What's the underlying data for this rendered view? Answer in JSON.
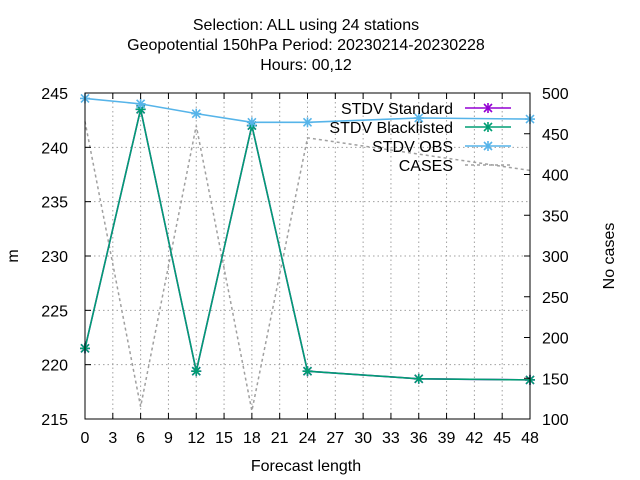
{
  "chart_data": {
    "type": "line",
    "title_lines": [
      "Selection: ALL using    24 stations",
      "Geopotential 150hPa   Period: 20230214-20230228",
      "Hours:  00,12"
    ],
    "xlabel": "Forecast length",
    "ylabel": "m",
    "y2label": "No cases",
    "xlim": [
      0,
      48
    ],
    "ylim": [
      215,
      245
    ],
    "y2lim": [
      100,
      500
    ],
    "xticks": [
      0,
      3,
      6,
      9,
      12,
      15,
      18,
      21,
      24,
      27,
      30,
      33,
      36,
      39,
      42,
      45,
      48
    ],
    "yticks": [
      215,
      220,
      225,
      230,
      235,
      240,
      245
    ],
    "y2ticks": [
      100,
      150,
      200,
      250,
      300,
      350,
      400,
      450,
      500
    ],
    "grid": true,
    "legend_position": "top-right",
    "series": [
      {
        "name": "STDV Standard",
        "axis": "y1",
        "color": "#9400d3",
        "marker": "x",
        "x": [
          0,
          6,
          12,
          18,
          24,
          36,
          48
        ],
        "y": [
          221.5,
          243.5,
          219.4,
          242.0,
          219.4,
          218.7,
          218.6
        ]
      },
      {
        "name": "STDV Blacklisted",
        "axis": "y1",
        "color": "#009e73",
        "marker": "x",
        "x": [
          0,
          6,
          12,
          18,
          24,
          36,
          48
        ],
        "y": [
          221.5,
          243.5,
          219.4,
          242.0,
          219.4,
          218.7,
          218.6
        ]
      },
      {
        "name": "STDV OBS",
        "axis": "y1",
        "color": "#56b4e9",
        "marker": "x",
        "x": [
          0,
          6,
          12,
          18,
          24,
          36,
          48
        ],
        "y": [
          244.5,
          244.0,
          243.1,
          242.3,
          242.3,
          242.7,
          242.6
        ]
      },
      {
        "name": "CASES",
        "axis": "y2",
        "color": "#a0a0a0",
        "marker": "none",
        "dashed": true,
        "x": [
          0,
          6,
          12,
          18,
          24,
          36,
          48
        ],
        "y": [
          465,
          115,
          460,
          110,
          445,
          425,
          405
        ]
      }
    ]
  }
}
